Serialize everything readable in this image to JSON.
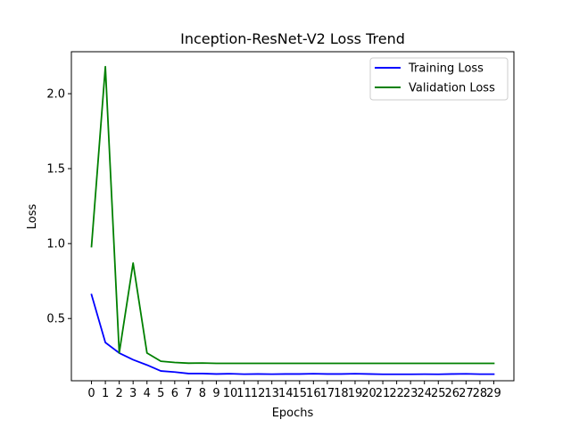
{
  "chart_data": {
    "type": "line",
    "title": "Inception-ResNet-V2 Loss Trend",
    "xlabel": "Epochs",
    "ylabel": "Loss",
    "x": [
      0,
      1,
      2,
      3,
      4,
      5,
      6,
      7,
      8,
      9,
      10,
      11,
      12,
      13,
      14,
      15,
      16,
      17,
      18,
      19,
      20,
      21,
      22,
      23,
      24,
      25,
      26,
      27,
      28,
      29
    ],
    "x_ticks": [
      "0",
      "1",
      "2",
      "3",
      "4",
      "5",
      "6",
      "7",
      "8",
      "9",
      "10",
      "11",
      "12",
      "13",
      "14",
      "15",
      "16",
      "17",
      "18",
      "19",
      "20",
      "21",
      "22",
      "23",
      "24",
      "25",
      "26",
      "27",
      "28",
      "29"
    ],
    "y_ticks": [
      "0.5",
      "1.0",
      "1.5",
      "2.0"
    ],
    "xlim": [
      -1.45,
      30.45
    ],
    "ylim": [
      0.085,
      2.28
    ],
    "grid": false,
    "legend_position": "top-right",
    "series": [
      {
        "name": "Training Loss",
        "color": "#0000ff",
        "values": [
          0.66,
          0.34,
          0.27,
          0.225,
          0.19,
          0.15,
          0.143,
          0.133,
          0.133,
          0.13,
          0.132,
          0.129,
          0.13,
          0.129,
          0.13,
          0.13,
          0.132,
          0.13,
          0.13,
          0.132,
          0.13,
          0.128,
          0.128,
          0.128,
          0.129,
          0.128,
          0.13,
          0.131,
          0.129,
          0.129
        ]
      },
      {
        "name": "Validation Loss",
        "color": "#008000",
        "values": [
          0.98,
          2.18,
          0.27,
          0.87,
          0.27,
          0.215,
          0.207,
          0.202,
          0.203,
          0.201,
          0.201,
          0.201,
          0.201,
          0.201,
          0.201,
          0.201,
          0.201,
          0.201,
          0.201,
          0.201,
          0.201,
          0.201,
          0.201,
          0.201,
          0.201,
          0.201,
          0.201,
          0.201,
          0.201,
          0.201
        ]
      }
    ]
  }
}
